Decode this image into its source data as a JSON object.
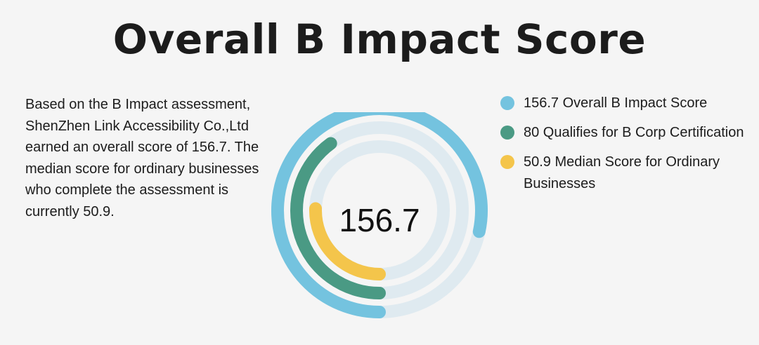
{
  "title": "Overall B Impact Score",
  "description": "Based on the B Impact assessment, ShenZhen Link Accessibility Co.,Ltd earned an overall score of 156.7. The median score for ordinary businesses who complete the assessment is currently 50.9.",
  "colors": {
    "track": "#dfeaf0",
    "background": "#f5f5f5"
  },
  "chart_data": {
    "type": "radial-bar",
    "center_label": "156.7",
    "series": [
      {
        "label": "156.7 Overall B Impact Score",
        "value": 156.7,
        "color": "#74c3df"
      },
      {
        "label": "80 Qualifies for B Corp Certification",
        "value": 80,
        "color": "#4a9a84"
      },
      {
        "label": "50.9 Median Score for Ordinary Businesses",
        "value": 50.9,
        "color": "#f4c54b"
      }
    ],
    "max": 200
  }
}
